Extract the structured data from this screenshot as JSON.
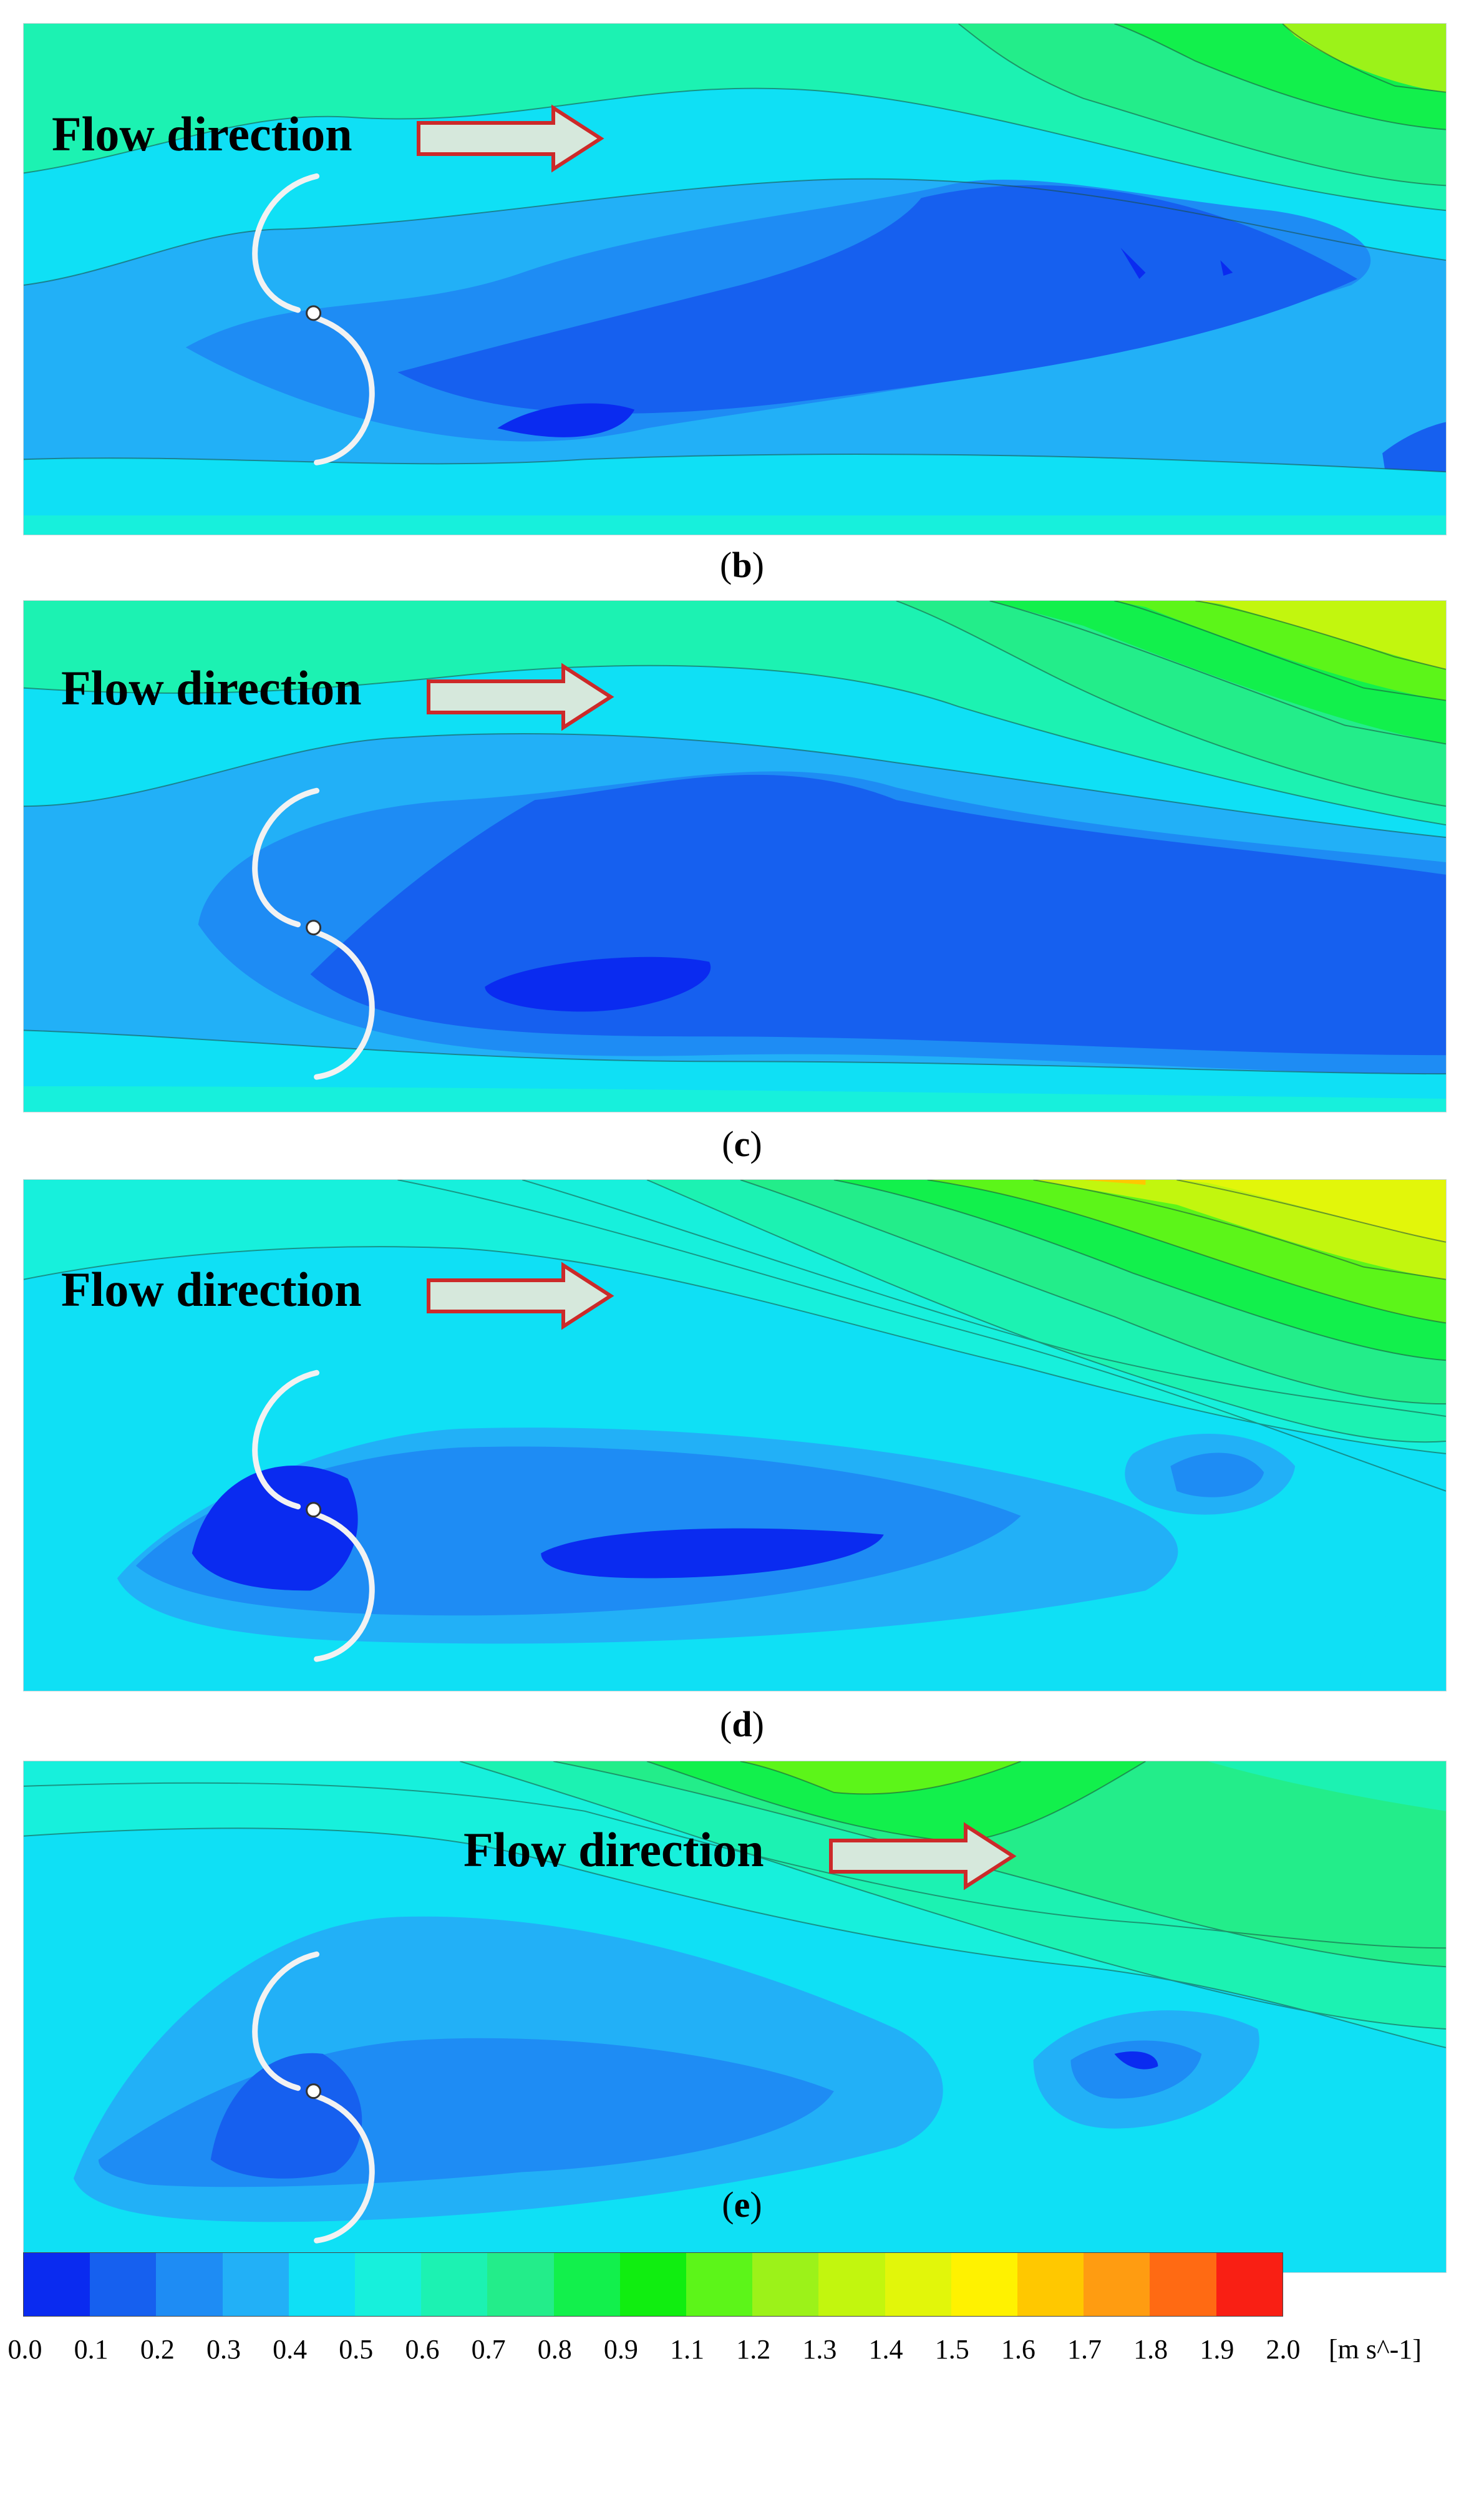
{
  "panels": [
    {
      "caption_open": "(",
      "caption_letter": "b",
      "caption_close": ")",
      "flow_label": "Flow direction"
    },
    {
      "caption_open": "(",
      "caption_letter": "c",
      "caption_close": ")",
      "flow_label": "Flow direction"
    },
    {
      "caption_open": "(",
      "caption_letter": "d",
      "caption_close": ")",
      "flow_label": "Flow direction"
    },
    {
      "caption_open": "(",
      "caption_letter": "e",
      "caption_close": ")",
      "flow_label": "Flow direction"
    }
  ],
  "legend": {
    "unit": "[m s^-1]",
    "ticks": [
      "0.0",
      "0.1",
      "0.2",
      "0.3",
      "0.4",
      "0.5",
      "0.6",
      "0.7",
      "0.8",
      "0.9",
      "1.1",
      "1.2",
      "1.3",
      "1.4",
      "1.5",
      "1.6",
      "1.7",
      "1.8",
      "1.9",
      "2.0"
    ],
    "colors": [
      "#0a2bf0",
      "#1660ef",
      "#1e8cf4",
      "#22b0f7",
      "#0fe0f5",
      "#17f0dc",
      "#1cf2b2",
      "#23ed8a",
      "#12f04c",
      "#10ee10",
      "#5cf519",
      "#9cf219",
      "#c2f60e",
      "#e2f60a",
      "#fff200",
      "#ffc800",
      "#ff9c11",
      "#ff6a13",
      "#f91f14"
    ]
  },
  "colors": {
    "deep": "#0a2bf0",
    "dark": "#1660ef",
    "mid": "#1e8cf4",
    "light": "#22b0f7",
    "cyan": "#0fe0f5",
    "aqua": "#17f0dc",
    "mint": "#1cf2b2",
    "seafoam": "#23ed8a",
    "green": "#12f04c",
    "lime": "#9cf219",
    "yellow": "#e2f60a",
    "arrow_fill": "#d6e8dc",
    "arrow_stroke": "#cc2a2a"
  }
}
